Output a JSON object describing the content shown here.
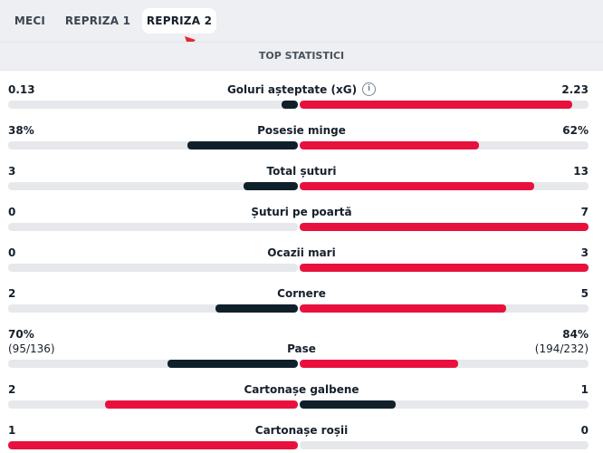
{
  "tabs": [
    {
      "label": "MECI",
      "active": false
    },
    {
      "label": "REPRIZA 1",
      "active": false
    },
    {
      "label": "REPRIZA 2",
      "active": true
    }
  ],
  "section_title": "TOP STATISTICI",
  "colors": {
    "dark_bar": "#0f202b",
    "highlight_bar": "#e8113d",
    "track": "#e6e8eb"
  },
  "stats": [
    {
      "name": "Goluri așteptate (xG)",
      "home": "0.13",
      "away": "2.23",
      "home_ratio": 0.055,
      "away_ratio": 0.945,
      "home_color": "dark",
      "away_color": "red",
      "info_icon": "info-icon"
    },
    {
      "name": "Posesie minge",
      "home": "38%",
      "away": "62%",
      "home_ratio": 0.38,
      "away_ratio": 0.62,
      "home_color": "dark",
      "away_color": "red"
    },
    {
      "name": "Total șuturi",
      "home": "3",
      "away": "13",
      "home_ratio": 0.1875,
      "away_ratio": 0.8125,
      "home_color": "dark",
      "away_color": "red"
    },
    {
      "name": "Șuturi pe poartă",
      "home": "0",
      "away": "7",
      "home_ratio": 0,
      "away_ratio": 1,
      "home_color": "dark",
      "away_color": "red"
    },
    {
      "name": "Ocazii mari",
      "home": "0",
      "away": "3",
      "home_ratio": 0,
      "away_ratio": 1,
      "home_color": "dark",
      "away_color": "red"
    },
    {
      "name": "Cornere",
      "home": "2",
      "away": "5",
      "home_ratio": 0.2857,
      "away_ratio": 0.7143,
      "home_color": "dark",
      "away_color": "red"
    },
    {
      "name": "Pase",
      "home": "70%",
      "away": "84%",
      "home_sub": "(95/136)",
      "away_sub": "(194/232)",
      "home_ratio": 0.45,
      "away_ratio": 0.55,
      "home_color": "dark",
      "away_color": "red"
    },
    {
      "name": "Cartonașe galbene",
      "home": "2",
      "away": "1",
      "home_ratio": 0.6667,
      "away_ratio": 0.3333,
      "home_color": "red",
      "away_color": "dark"
    },
    {
      "name": "Cartonașe roșii",
      "home": "1",
      "away": "0",
      "home_ratio": 1,
      "away_ratio": 0,
      "home_color": "red",
      "away_color": "dark"
    }
  ]
}
